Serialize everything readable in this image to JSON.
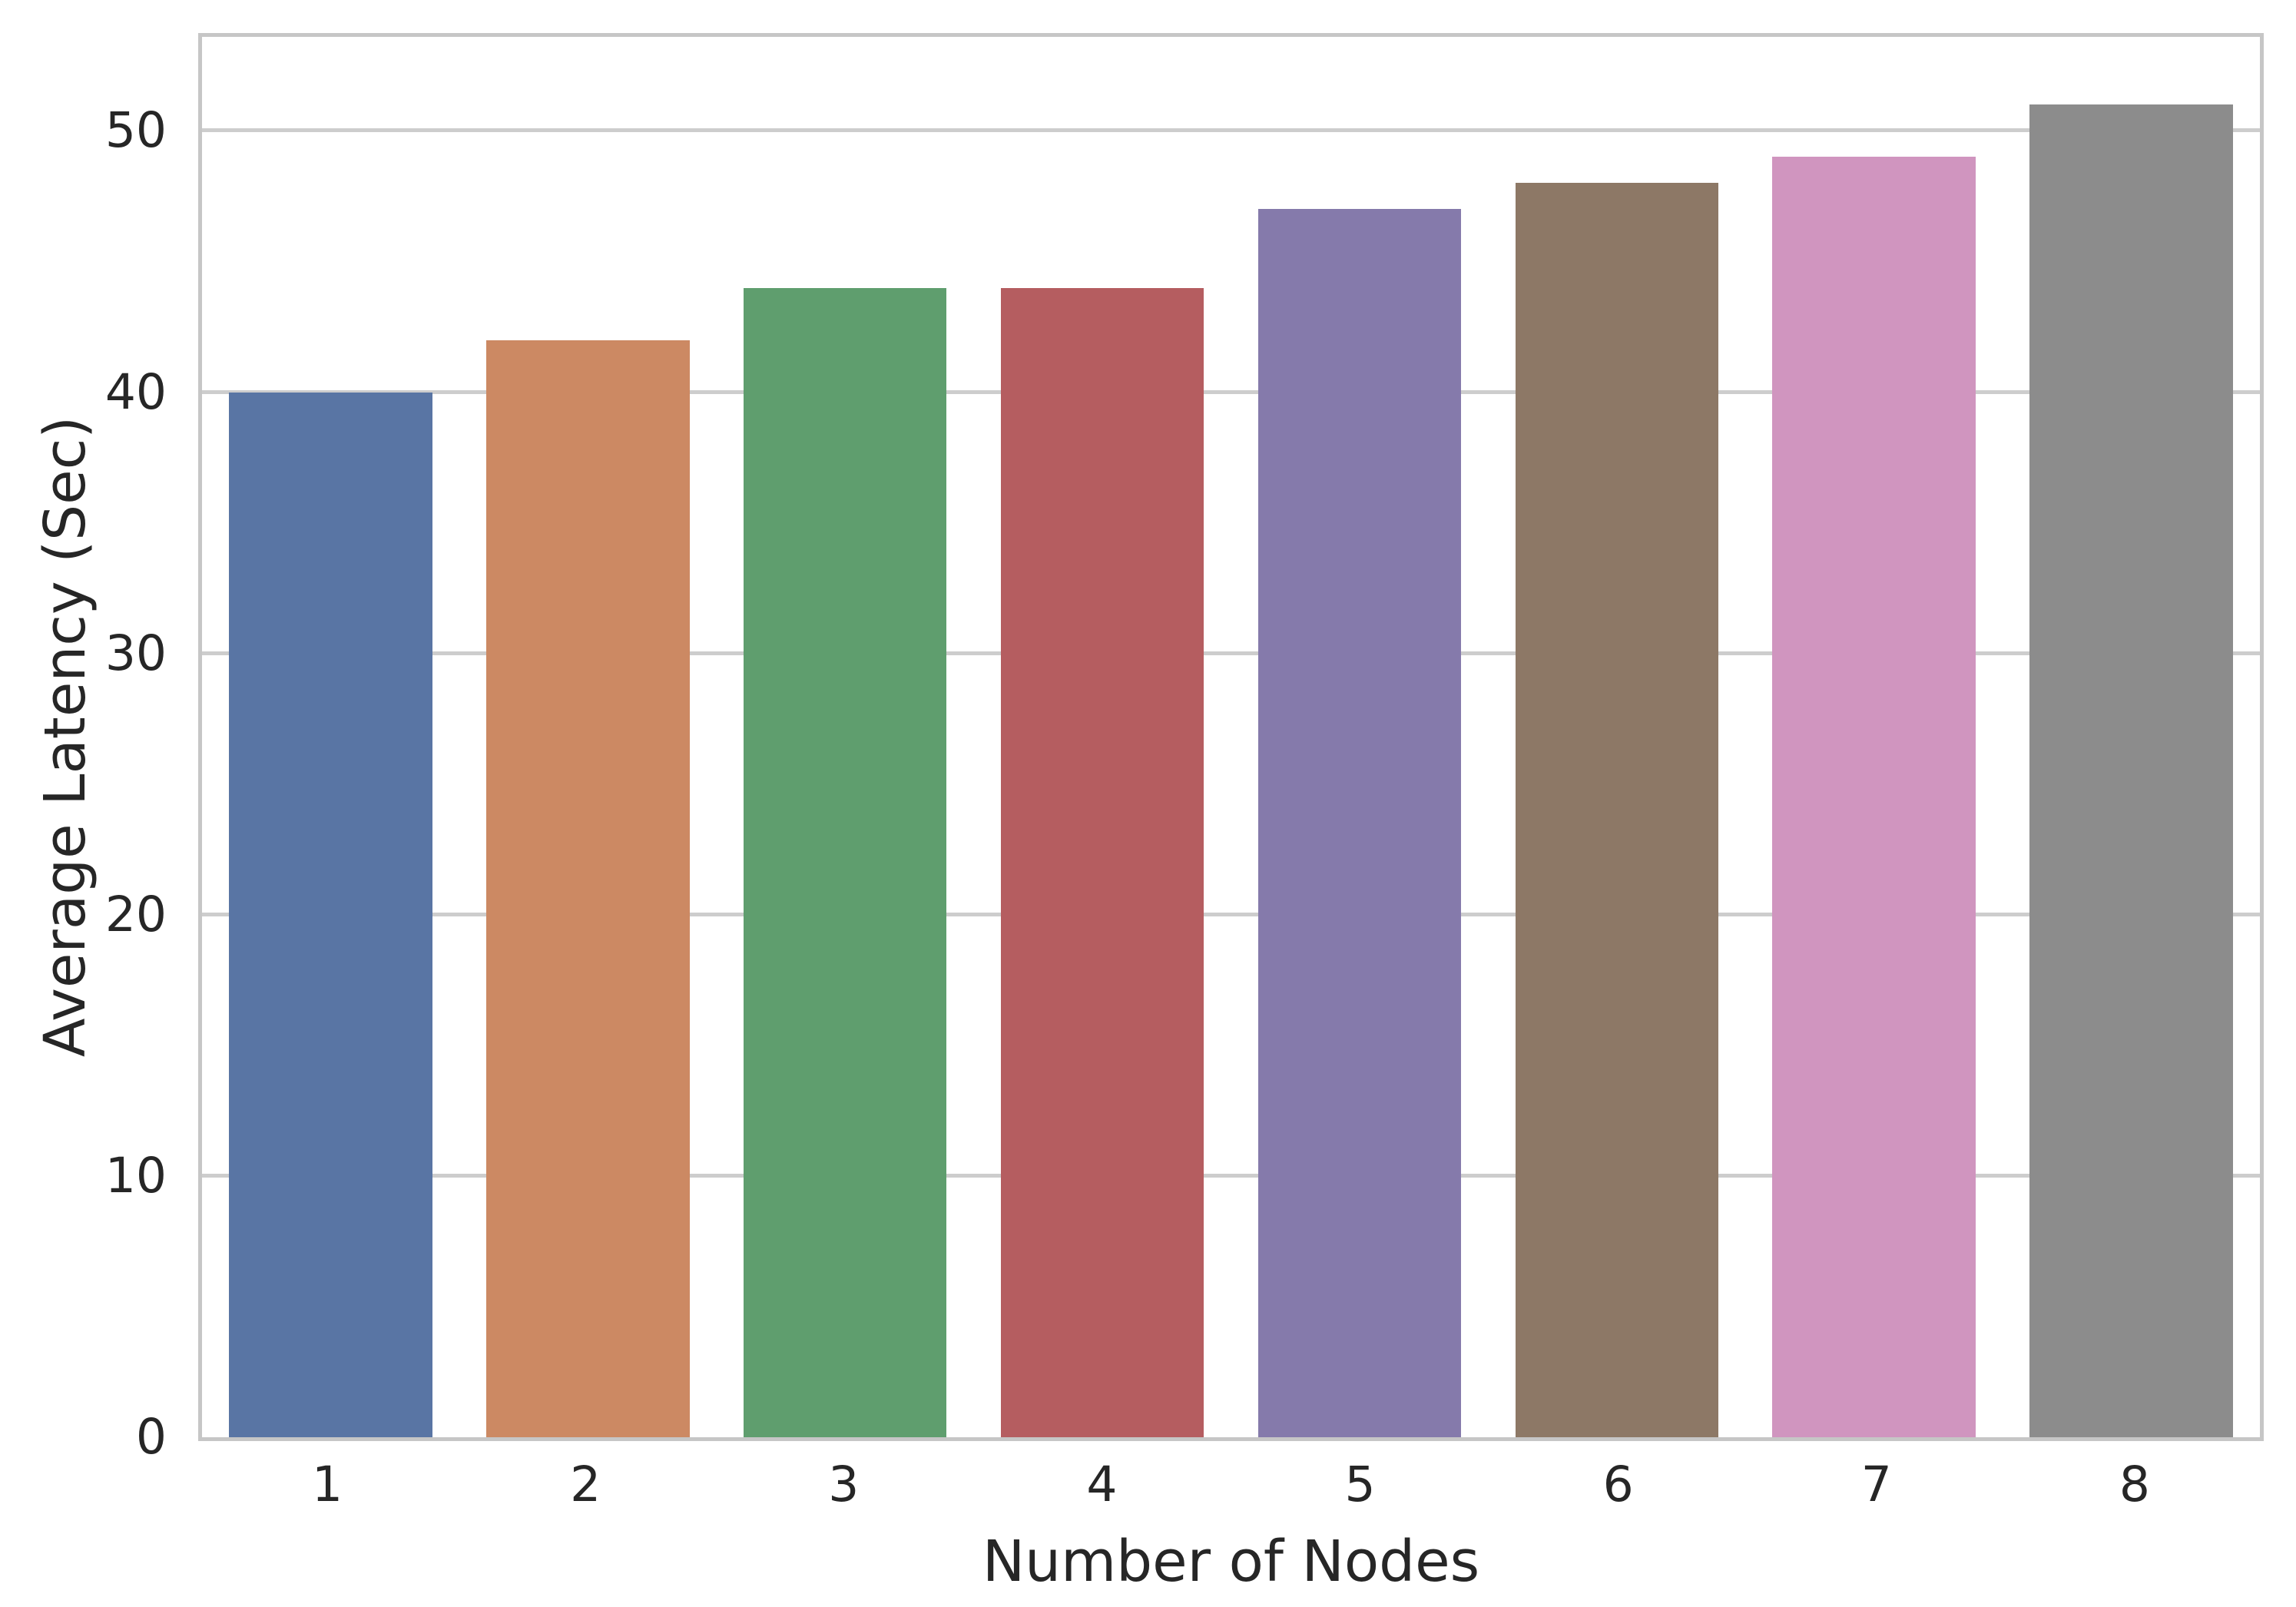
{
  "figure": {
    "background_color": "#ffffff",
    "text_color": "#262626",
    "grid_color": "#cdcdcd",
    "spine_color": "#c6c6c6"
  },
  "chart_data": {
    "type": "bar",
    "title": "",
    "xlabel": "Number of Nodes",
    "ylabel": "Average Latency (Sec)",
    "categories": [
      "1",
      "2",
      "3",
      "4",
      "5",
      "6",
      "7",
      "8"
    ],
    "values": [
      40,
      42,
      44,
      44,
      47,
      48,
      49,
      51
    ],
    "bar_colors": [
      "#5975A4",
      "#CC8963",
      "#5F9E6E",
      "#B55D60",
      "#857AAB",
      "#8D7866",
      "#D095BF",
      "#8C8C8C"
    ],
    "ylim": [
      0,
      53.6
    ],
    "yticks": [
      0,
      10,
      20,
      30,
      40,
      50
    ],
    "bar_width_fraction": 0.79,
    "grid": "horizontal",
    "legend": "none"
  }
}
